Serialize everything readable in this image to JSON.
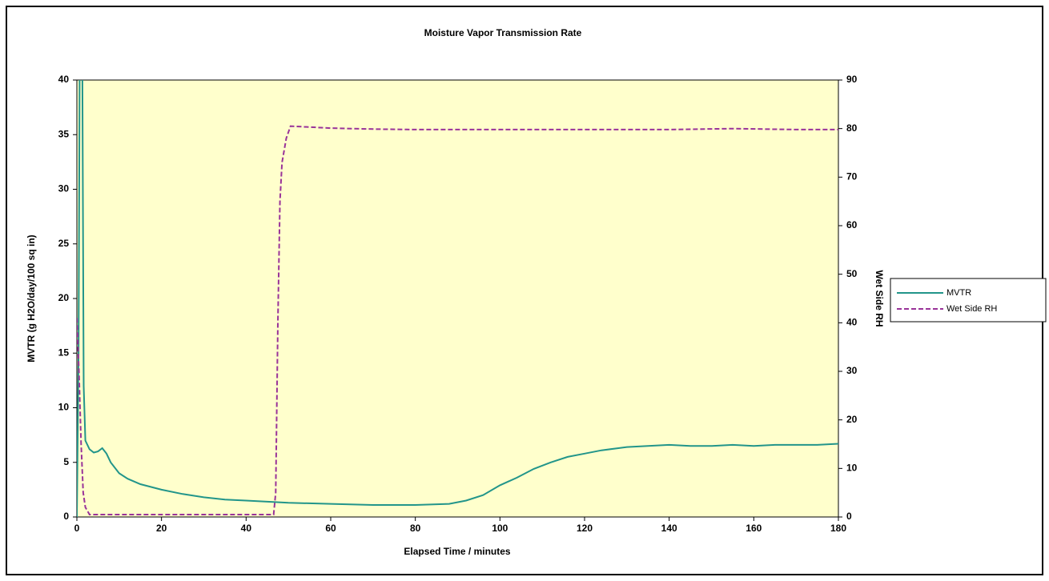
{
  "chart_data": {
    "type": "line",
    "title": "Moisture Vapor Transmission Rate",
    "xlabel": "Elapsed Time / minutes",
    "ylabel": "MVTR (g H2O/day/100 sq in)",
    "y2label": "Wet Side RH",
    "xlim": [
      0,
      180
    ],
    "xticks": [
      0,
      20,
      40,
      60,
      80,
      100,
      120,
      140,
      160,
      180
    ],
    "ylim": [
      0,
      40
    ],
    "yticks": [
      0,
      5,
      10,
      15,
      20,
      25,
      30,
      35,
      40
    ],
    "y2lim": [
      0,
      90
    ],
    "y2ticks": [
      0,
      10,
      20,
      30,
      40,
      50,
      60,
      70,
      80,
      90
    ],
    "plot_background": "#ffffcc",
    "legend": "right",
    "series": [
      {
        "name": "MVTR",
        "color": "#22958a",
        "dash": false,
        "x": [
          0,
          0.4,
          0.7,
          1.0,
          1.3,
          1.6,
          2,
          3,
          4,
          5,
          6,
          7,
          8,
          10,
          12,
          15,
          20,
          25,
          30,
          35,
          40,
          45,
          50,
          60,
          70,
          80,
          88,
          92,
          96,
          100,
          104,
          108,
          112,
          116,
          120,
          124,
          128,
          130,
          135,
          140,
          145,
          150,
          155,
          160,
          165,
          170,
          175,
          180
        ],
        "values": [
          0,
          15,
          45,
          48,
          40,
          12,
          7,
          6.2,
          5.9,
          6.0,
          6.3,
          5.8,
          5.0,
          4.0,
          3.5,
          3.0,
          2.5,
          2.1,
          1.8,
          1.6,
          1.5,
          1.4,
          1.3,
          1.2,
          1.1,
          1.1,
          1.2,
          1.5,
          2.0,
          2.9,
          3.6,
          4.4,
          5.0,
          5.5,
          5.8,
          6.1,
          6.3,
          6.4,
          6.5,
          6.6,
          6.5,
          6.5,
          6.6,
          6.5,
          6.6,
          6.6,
          6.6,
          6.7
        ]
      },
      {
        "name": "Wet Side RH",
        "color": "#993399",
        "dash": true,
        "axis": "y2",
        "x": [
          0,
          0.5,
          1,
          1.5,
          2,
          3,
          10,
          46.5,
          47,
          47.5,
          48,
          48.5,
          49.5,
          50.5,
          55,
          60,
          70,
          80,
          100,
          140,
          155,
          170,
          180
        ],
        "values": [
          41,
          30,
          15,
          5,
          2,
          0.5,
          0.5,
          0.5,
          5,
          40,
          65,
          73,
          78,
          80.5,
          80.3,
          80.1,
          79.9,
          79.8,
          79.8,
          79.8,
          80,
          79.8,
          79.8
        ]
      }
    ]
  }
}
